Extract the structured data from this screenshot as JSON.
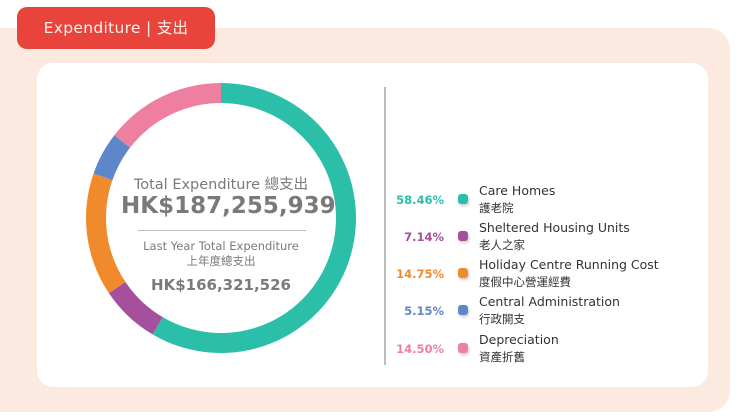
{
  "header": {
    "title": "Expenditure | 支出"
  },
  "summary": {
    "total_label": "Total Expenditure 總支出",
    "total_value": "HK$187,255,939",
    "last_year_label_en": "Last Year Total Expenditure",
    "last_year_label_zh": "上年度總支出",
    "last_year_value": "HK$166,321,526"
  },
  "chart_data": {
    "type": "pie",
    "variant": "donut",
    "title": "Total Expenditure 總支出",
    "series": [
      {
        "name": "Care Homes",
        "name_zh": "護老院",
        "value": 58.46,
        "label": "58.46%",
        "color": "#2bbfa9"
      },
      {
        "name": "Sheltered Housing Units",
        "name_zh": "老人之家",
        "value": 7.14,
        "label": "7.14%",
        "color": "#a54f9d"
      },
      {
        "name": "Holiday Centre Running Cost",
        "name_zh": "度假中心營運經費",
        "value": 14.75,
        "label": "14.75%",
        "color": "#f18a2b"
      },
      {
        "name": "Central Administration",
        "name_zh": "行政開支",
        "value": 5.15,
        "label": "5.15%",
        "color": "#5d87c9"
      },
      {
        "name": "Depreciation",
        "name_zh": "資產折舊",
        "value": 14.5,
        "label": "14.50%",
        "color": "#ef7fa1"
      }
    ],
    "legend": "right"
  }
}
